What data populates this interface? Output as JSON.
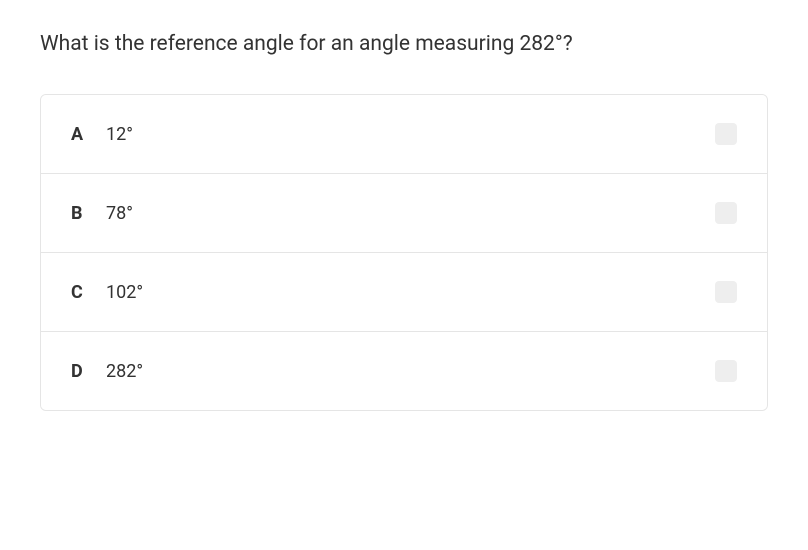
{
  "question": {
    "text": "What is the reference angle for an angle measuring 282°?"
  },
  "options": [
    {
      "letter": "A",
      "value": "12°"
    },
    {
      "letter": "B",
      "value": "78°"
    },
    {
      "letter": "C",
      "value": "102°"
    },
    {
      "letter": "D",
      "value": "282°"
    }
  ]
}
